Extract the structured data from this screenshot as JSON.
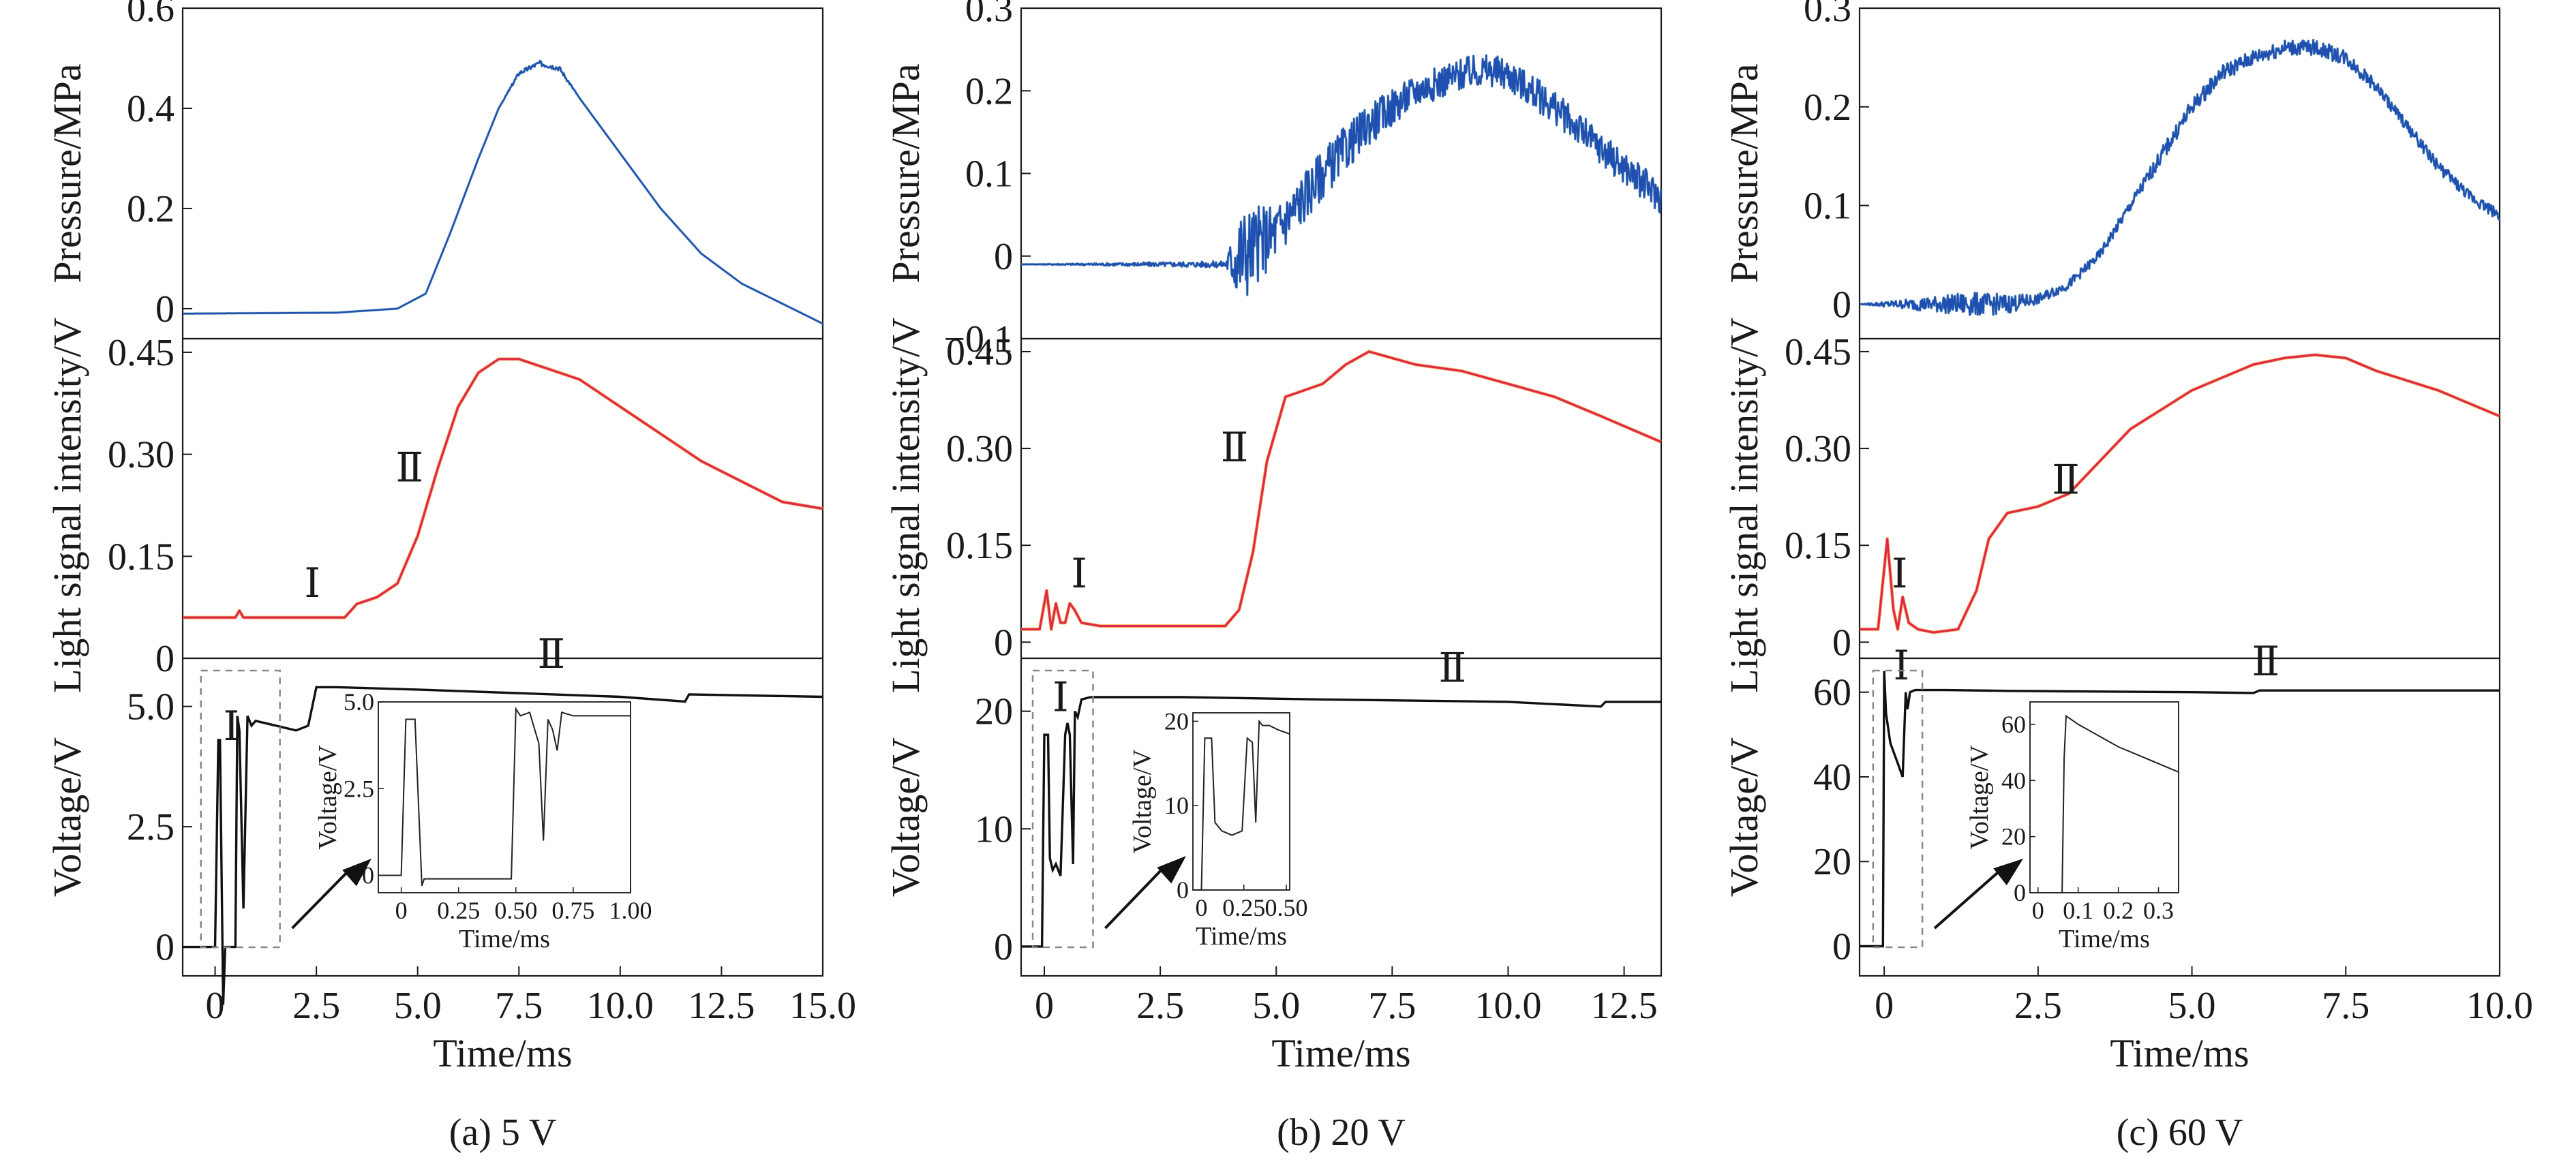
{
  "colors": {
    "pressure": "#1f4fb0",
    "pressure_noise": "#2a7a9a",
    "light": "#e0284a",
    "light_shadow": "#f0a020",
    "voltage": "#111111",
    "box": "#888888"
  },
  "chart_data": [
    {
      "panel": "a",
      "caption": "(a) 5 V",
      "type": "line",
      "xlabel": "Time/ms",
      "xlim": [
        -0.8,
        15.0
      ],
      "x_ticks": [
        0,
        2.5,
        5.0,
        7.5,
        10.0,
        12.5,
        15.0
      ],
      "x_tick_labels": [
        "0",
        "2.5",
        "5.0",
        "7.5",
        "10.0",
        "12.5",
        "15.0"
      ],
      "subplots": [
        {
          "name": "pressure",
          "ylabel": "Pressure/MPa",
          "ylim": [
            -0.06,
            0.6
          ],
          "y_ticks": [
            0,
            0.2,
            0.4,
            0.6
          ],
          "y_tick_labels": [
            "0",
            "0.2",
            "0.4",
            "0.6"
          ],
          "x": [
            -0.8,
            3.0,
            4.5,
            5.2,
            5.8,
            6.5,
            7.0,
            7.5,
            8.0,
            8.5,
            9.0,
            10.0,
            11.0,
            12.0,
            13.0,
            14.0,
            15.0
          ],
          "y": [
            -0.01,
            -0.008,
            0.0,
            0.03,
            0.15,
            0.3,
            0.4,
            0.47,
            0.49,
            0.48,
            0.42,
            0.31,
            0.2,
            0.11,
            0.05,
            0.01,
            -0.03
          ],
          "noise": [
            0,
            0,
            0,
            0,
            0,
            0,
            0,
            0.004,
            0.005,
            0.005,
            0,
            0,
            0,
            0,
            0,
            0,
            0
          ]
        },
        {
          "name": "light",
          "ylabel": "Light signal intensity/V",
          "ylim": [
            0,
            0.47
          ],
          "y_ticks": [
            0,
            0.15,
            0.3,
            0.45
          ],
          "y_tick_labels": [
            "0",
            "0.15",
            "0.30",
            "0.45"
          ],
          "x": [
            -0.8,
            0.5,
            0.6,
            0.7,
            3.2,
            3.5,
            4.0,
            4.5,
            5.0,
            5.5,
            6.0,
            6.5,
            7.0,
            7.5,
            8.0,
            9.0,
            10.0,
            11.0,
            12.0,
            13.0,
            14.0,
            15.0
          ],
          "y": [
            0.06,
            0.06,
            0.07,
            0.06,
            0.06,
            0.08,
            0.09,
            0.11,
            0.18,
            0.28,
            0.37,
            0.42,
            0.44,
            0.44,
            0.43,
            0.41,
            0.37,
            0.33,
            0.29,
            0.26,
            0.23,
            0.22
          ],
          "roman_labels": [
            {
              "text": "Ⅰ",
              "x": 2.4,
              "y": 0.09
            },
            {
              "text": "Ⅱ",
              "x": 4.8,
              "y": 0.26
            }
          ]
        },
        {
          "name": "voltage",
          "ylabel": "Voltage/V",
          "ylim": [
            -0.6,
            6.0
          ],
          "y_ticks": [
            0,
            2.5,
            5.0
          ],
          "y_tick_labels": [
            "0",
            "2.5",
            "5.0"
          ],
          "x": [
            -0.8,
            0.0,
            0.08,
            0.12,
            0.2,
            0.25,
            0.3,
            0.35,
            0.5,
            0.55,
            0.6,
            0.7,
            0.8,
            0.9,
            1.0,
            1.5,
            2.0,
            2.3,
            2.5,
            3.0,
            5.0,
            10.0,
            11.6,
            11.7,
            15.0
          ],
          "y": [
            0.0,
            0.0,
            4.3,
            4.3,
            -1.2,
            0.0,
            0.0,
            0.0,
            0.0,
            4.8,
            4.5,
            0.8,
            4.8,
            4.6,
            4.7,
            4.6,
            4.5,
            4.6,
            5.4,
            5.4,
            5.35,
            5.2,
            5.1,
            5.25,
            5.2
          ],
          "roman_labels": [
            {
              "text": "Ⅰ",
              "x": 0.4,
              "y": 4.3
            },
            {
              "text": "Ⅱ",
              "x": 8.3,
              "y": 5.8
            }
          ],
          "inset": {
            "ylabel": "Voltage/V",
            "xlabel": "Time/ms",
            "xlim": [
              -0.1,
              1.0
            ],
            "ylim": [
              -0.5,
              5.0
            ],
            "x_ticks": [
              0,
              0.25,
              0.5,
              0.75,
              1.0
            ],
            "x_tick_labels": [
              "0",
              "0.25",
              "0.50",
              "0.75",
              "1.00"
            ],
            "y_ticks": [
              0,
              2.5,
              5.0
            ],
            "y_tick_labels": [
              "0",
              "2.5",
              "5.0"
            ],
            "x": [
              -0.1,
              0.0,
              0.02,
              0.06,
              0.09,
              0.1,
              0.48,
              0.5,
              0.52,
              0.56,
              0.6,
              0.62,
              0.64,
              0.66,
              0.68,
              0.7,
              0.75,
              1.0
            ],
            "y": [
              0.0,
              0.0,
              4.5,
              4.5,
              -0.3,
              -0.1,
              -0.1,
              4.8,
              4.6,
              4.7,
              3.8,
              1.0,
              4.5,
              4.2,
              3.6,
              4.7,
              4.6,
              4.6
            ]
          }
        }
      ]
    },
    {
      "panel": "b",
      "caption": "(b) 20 V",
      "type": "line",
      "xlabel": "Time/ms",
      "xlim": [
        -0.5,
        13.3
      ],
      "x_ticks": [
        0,
        2.5,
        5.0,
        7.5,
        10.0,
        12.5
      ],
      "x_tick_labels": [
        "0",
        "2.5",
        "5.0",
        "7.5",
        "10.0",
        "12.5"
      ],
      "subplots": [
        {
          "name": "pressure",
          "ylabel": "Pressure/MPa",
          "ylim": [
            -0.1,
            0.3
          ],
          "y_ticks": [
            -0.1,
            0,
            0.1,
            0.2,
            0.3
          ],
          "y_tick_labels": [
            "−0.1",
            "0",
            "0.1",
            "0.2",
            "0.3"
          ],
          "x": [
            -0.5,
            3.9,
            4.2,
            5.0,
            6.0,
            7.0,
            8.0,
            9.0,
            9.5,
            10.0,
            11.0,
            12.0,
            13.3
          ],
          "y": [
            -0.01,
            -0.01,
            0.0,
            0.03,
            0.1,
            0.16,
            0.2,
            0.22,
            0.225,
            0.22,
            0.18,
            0.13,
            0.07
          ],
          "noise": [
            0,
            0.004,
            0.06,
            0.035,
            0.03,
            0.025,
            0.02,
            0.02,
            0.02,
            0.02,
            0.02,
            0.02,
            0.02
          ]
        },
        {
          "name": "light",
          "ylabel": "Light signal intensity/V",
          "ylim": [
            -0.025,
            0.47
          ],
          "y_ticks": [
            0,
            0.15,
            0.3,
            0.45
          ],
          "y_tick_labels": [
            "0",
            "0.15",
            "0.30",
            "0.45"
          ],
          "x": [
            -0.5,
            -0.1,
            0.05,
            0.15,
            0.25,
            0.35,
            0.45,
            0.55,
            0.65,
            0.8,
            1.2,
            2.0,
            3.9,
            4.2,
            4.5,
            4.8,
            5.2,
            5.6,
            6.0,
            6.5,
            7.0,
            7.5,
            8.0,
            9.0,
            10.0,
            11.0,
            12.0,
            13.3
          ],
          "y": [
            0.02,
            0.02,
            0.08,
            0.02,
            0.06,
            0.03,
            0.03,
            0.06,
            0.05,
            0.03,
            0.025,
            0.025,
            0.025,
            0.05,
            0.14,
            0.28,
            0.38,
            0.39,
            0.4,
            0.43,
            0.45,
            0.44,
            0.43,
            0.42,
            0.4,
            0.38,
            0.35,
            0.31
          ],
          "roman_labels": [
            {
              "text": "Ⅰ",
              "x": 0.75,
              "y": 0.085
            },
            {
              "text": "Ⅱ",
              "x": 4.1,
              "y": 0.28
            }
          ]
        },
        {
          "name": "voltage",
          "ylabel": "Voltage/V",
          "ylim": [
            -2.5,
            24.5
          ],
          "y_ticks": [
            0,
            10,
            20
          ],
          "y_tick_labels": [
            "0",
            "10",
            "20"
          ],
          "x": [
            -0.5,
            -0.05,
            0.0,
            0.08,
            0.12,
            0.18,
            0.25,
            0.35,
            0.45,
            0.5,
            0.55,
            0.62,
            0.66,
            0.72,
            0.8,
            1.0,
            3.0,
            6.0,
            10.0,
            12.0,
            12.1,
            13.3
          ],
          "y": [
            0.0,
            0.0,
            18.0,
            18.0,
            7.5,
            6.5,
            7.0,
            6.0,
            18.0,
            19.0,
            18.0,
            7.0,
            20.0,
            19.5,
            21.0,
            21.2,
            21.2,
            21.0,
            20.8,
            20.4,
            20.8,
            20.8
          ],
          "roman_labels": [
            {
              "text": "Ⅰ",
              "x": 0.35,
              "y": 20.0
            },
            {
              "text": "Ⅱ",
              "x": 8.8,
              "y": 22.5
            }
          ],
          "inset": {
            "ylabel": "Voltage/V",
            "xlabel": "Time/ms",
            "xlim": [
              -0.05,
              0.52
            ],
            "ylim": [
              0,
              21.0
            ],
            "x_ticks": [
              0,
              0.25,
              0.5
            ],
            "x_tick_labels": [
              "0",
              "0.25",
              "0.50"
            ],
            "y_ticks": [
              0,
              10,
              20
            ],
            "y_tick_labels": [
              "0",
              "10",
              "20"
            ],
            "x": [
              -0.05,
              0.0,
              0.02,
              0.06,
              0.08,
              0.12,
              0.18,
              0.24,
              0.27,
              0.3,
              0.32,
              0.34,
              0.36,
              0.4,
              0.45,
              0.52
            ],
            "y": [
              0.0,
              0.0,
              18.0,
              18.0,
              8.0,
              7.0,
              6.5,
              7.0,
              18.0,
              17.5,
              8.0,
              20.0,
              19.5,
              19.5,
              19.0,
              18.5
            ]
          }
        }
      ]
    },
    {
      "panel": "c",
      "caption": "(c) 60 V",
      "type": "line",
      "xlabel": "Time/ms",
      "xlim": [
        -0.4,
        10.0
      ],
      "x_ticks": [
        0,
        2.5,
        5.0,
        7.5,
        10.0
      ],
      "x_tick_labels": [
        "0",
        "2.5",
        "5.0",
        "7.5",
        "10.0"
      ],
      "subplots": [
        {
          "name": "pressure",
          "ylabel": "Pressure/MPa",
          "ylim": [
            -0.035,
            0.3
          ],
          "y_ticks": [
            0,
            0.1,
            0.2,
            0.3
          ],
          "y_tick_labels": [
            "0",
            "0.1",
            "0.2",
            "0.3"
          ],
          "x": [
            -0.4,
            1.4,
            2.0,
            2.5,
            3.0,
            3.5,
            4.0,
            4.5,
            5.0,
            5.5,
            6.0,
            6.5,
            7.0,
            7.5,
            8.0,
            8.5,
            9.0,
            9.5,
            10.0
          ],
          "y": [
            0.0,
            0.0,
            0.0,
            0.005,
            0.02,
            0.05,
            0.1,
            0.15,
            0.2,
            0.235,
            0.25,
            0.26,
            0.26,
            0.25,
            0.22,
            0.18,
            0.14,
            0.11,
            0.09
          ],
          "noise": [
            0,
            0.012,
            0.01,
            0.005,
            0.005,
            0.005,
            0.006,
            0.008,
            0.008,
            0.008,
            0.008,
            0.008,
            0.008,
            0.008,
            0.006,
            0.006,
            0.006,
            0.006,
            0.006
          ]
        },
        {
          "name": "light",
          "ylabel": "Light signal intensity/V",
          "ylim": [
            -0.025,
            0.47
          ],
          "y_ticks": [
            0,
            0.15,
            0.3,
            0.45
          ],
          "y_tick_labels": [
            "0",
            "0.15",
            "0.30",
            "0.45"
          ],
          "x": [
            -0.4,
            -0.1,
            0.05,
            0.15,
            0.22,
            0.3,
            0.4,
            0.55,
            0.8,
            1.2,
            1.5,
            1.7,
            2.0,
            2.5,
            3.0,
            3.5,
            4.0,
            5.0,
            5.5,
            6.0,
            6.5,
            7.0,
            7.5,
            8.0,
            9.0,
            10.0
          ],
          "y": [
            0.02,
            0.02,
            0.16,
            0.05,
            0.02,
            0.07,
            0.03,
            0.02,
            0.015,
            0.02,
            0.08,
            0.16,
            0.2,
            0.21,
            0.23,
            0.28,
            0.33,
            0.39,
            0.41,
            0.43,
            0.44,
            0.445,
            0.44,
            0.42,
            0.39,
            0.35
          ],
          "roman_labels": [
            {
              "text": "Ⅰ",
              "x": 0.25,
              "y": 0.085
            },
            {
              "text": "Ⅱ",
              "x": 2.95,
              "y": 0.23
            }
          ]
        },
        {
          "name": "voltage",
          "ylabel": "Voltage/V",
          "ylim": [
            -7.0,
            68.0
          ],
          "y_ticks": [
            0,
            20,
            40,
            60
          ],
          "y_tick_labels": [
            "0",
            "20",
            "40",
            "60"
          ],
          "x": [
            -0.4,
            -0.02,
            0.0,
            0.03,
            0.1,
            0.2,
            0.3,
            0.35,
            0.38,
            0.42,
            0.5,
            1.0,
            2.0,
            3.0,
            5.0,
            6.0,
            6.1,
            10.0
          ],
          "y": [
            0.0,
            0.0,
            65.0,
            55.0,
            48.0,
            44.0,
            40.0,
            60.0,
            56.0,
            60.0,
            60.5,
            60.5,
            60.3,
            60.2,
            60.0,
            59.8,
            60.4,
            60.4
          ],
          "roman_labels": [
            {
              "text": "Ⅰ",
              "x": 0.28,
              "y": 63.0
            },
            {
              "text": "Ⅱ",
              "x": 6.2,
              "y": 64.0
            }
          ],
          "inset": {
            "ylabel": "Voltage/V",
            "xlabel": "Time/ms",
            "xlim": [
              -0.02,
              0.35
            ],
            "ylim": [
              0,
              68.0
            ],
            "x_ticks": [
              0,
              0.1,
              0.2,
              0.3
            ],
            "x_tick_labels": [
              "0",
              "0.1",
              "0.2",
              "0.3"
            ],
            "y_ticks": [
              0,
              20,
              40,
              60
            ],
            "y_tick_labels": [
              "0",
              "20",
              "40",
              "60"
            ],
            "x": [
              -0.02,
              0.06,
              0.065,
              0.07,
              0.08,
              0.1,
              0.15,
              0.2,
              0.25,
              0.3,
              0.35
            ],
            "y": [
              0.0,
              0.0,
              48.0,
              63.0,
              62.0,
              60.0,
              56.0,
              52.0,
              49.0,
              46.0,
              43.0
            ]
          }
        }
      ]
    }
  ]
}
